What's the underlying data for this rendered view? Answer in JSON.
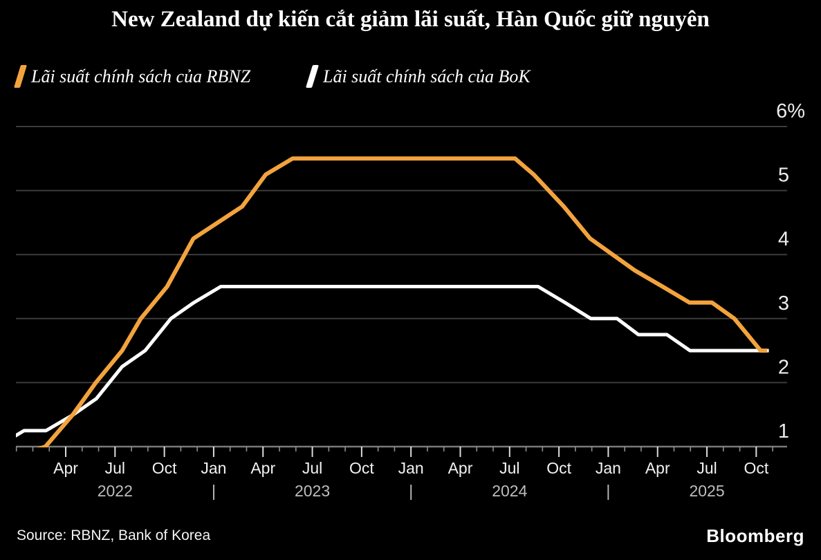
{
  "title": "New Zealand dự kiến cắt giảm lãi suất, Hàn Quốc giữ nguyên",
  "legend": [
    {
      "label": "Lãi suất chính sách của RBNZ",
      "color": "#F3A33D"
    },
    {
      "label": "Lãi suất chính sách của BoK",
      "color": "#FFFFFF"
    }
  ],
  "footer": {
    "source": "Source: RBNZ, Bank of Korea",
    "brand": "Bloomberg"
  },
  "colors": {
    "background": "#000000",
    "gridline": "#3C3C3C",
    "axis_line": "#7A7A7A",
    "major_tick": "#DCDCDC",
    "minor_tick": "#8F8F8F",
    "y_label": "#ECECEC",
    "month_label": "#F2F2F2",
    "year_label": "#BDBDBD",
    "rbnz_orange": "#F3A33D",
    "bok_white": "#FFFFFF"
  },
  "chart_data": {
    "type": "line",
    "title": "New Zealand dự kiến cắt giảm lãi suất, Hàn Quốc giữ nguyên",
    "xlabel": "",
    "ylabel": "%",
    "ylim": [
      1,
      6
    ],
    "x_domain": [
      "2022-01",
      "2025-11"
    ],
    "grid": "horizontal",
    "legend_position": "top-left",
    "yticks": [
      {
        "v": 6,
        "label": "6%"
      },
      {
        "v": 5,
        "label": "5"
      },
      {
        "v": 4,
        "label": "4"
      },
      {
        "v": 3,
        "label": "3"
      },
      {
        "v": 2,
        "label": "2"
      },
      {
        "v": 1,
        "label": "1"
      }
    ],
    "xticks": [
      {
        "m": 3,
        "label": "Apr"
      },
      {
        "m": 6,
        "label": "Jul"
      },
      {
        "m": 9,
        "label": "Oct"
      },
      {
        "m": 12,
        "label": "Jan"
      },
      {
        "m": 15,
        "label": "Apr"
      },
      {
        "m": 18,
        "label": "Jul"
      },
      {
        "m": 21,
        "label": "Oct"
      },
      {
        "m": 24,
        "label": "Jan"
      },
      {
        "m": 27,
        "label": "Apr"
      },
      {
        "m": 30,
        "label": "Jul"
      },
      {
        "m": 33,
        "label": "Oct"
      },
      {
        "m": 36,
        "label": "Jan"
      },
      {
        "m": 39,
        "label": "Apr"
      },
      {
        "m": 42,
        "label": "Jul"
      },
      {
        "m": 45,
        "label": "Oct"
      }
    ],
    "year_labels": [
      {
        "m": 6,
        "label": "2022"
      },
      {
        "m": 12,
        "label": "|"
      },
      {
        "m": 18,
        "label": "2023"
      },
      {
        "m": 24,
        "label": "|"
      },
      {
        "m": 30,
        "label": "2024"
      },
      {
        "m": 36,
        "label": "|"
      },
      {
        "m": 42,
        "label": "2025"
      }
    ],
    "series": [
      {
        "name": "Lãi suất chính sách của RBNZ",
        "unit": "%",
        "color": "#F3A33D",
        "points": [
          {
            "d": "2021-11-24",
            "v": 0.75
          },
          {
            "d": "2022-02-23",
            "v": 1.0
          },
          {
            "d": "2022-04-13",
            "v": 1.5
          },
          {
            "d": "2022-05-25",
            "v": 2.0
          },
          {
            "d": "2022-07-13",
            "v": 2.5
          },
          {
            "d": "2022-08-17",
            "v": 3.0
          },
          {
            "d": "2022-10-05",
            "v": 3.5
          },
          {
            "d": "2022-11-23",
            "v": 4.25
          },
          {
            "d": "2023-02-22",
            "v": 4.75
          },
          {
            "d": "2023-04-05",
            "v": 5.25
          },
          {
            "d": "2023-05-24",
            "v": 5.5
          },
          {
            "d": "2024-07-10",
            "v": 5.5
          },
          {
            "d": "2024-08-14",
            "v": 5.25
          },
          {
            "d": "2024-10-09",
            "v": 4.75
          },
          {
            "d": "2024-11-27",
            "v": 4.25
          },
          {
            "d": "2025-02-19",
            "v": 3.75
          },
          {
            "d": "2025-04-09",
            "v": 3.5
          },
          {
            "d": "2025-05-28",
            "v": 3.25
          },
          {
            "d": "2025-07-09",
            "v": 3.25
          },
          {
            "d": "2025-08-20",
            "v": 3.0
          },
          {
            "d": "2025-10-08",
            "v": 2.5
          },
          {
            "d": "2025-10-20",
            "v": 2.5
          }
        ]
      },
      {
        "name": "Lãi suất chính sách của BoK",
        "unit": "%",
        "color": "#FFFFFF",
        "points": [
          {
            "d": "2021-11-25",
            "v": 1.0
          },
          {
            "d": "2022-01-14",
            "v": 1.25
          },
          {
            "d": "2022-02-24",
            "v": 1.25
          },
          {
            "d": "2022-04-14",
            "v": 1.5
          },
          {
            "d": "2022-05-26",
            "v": 1.75
          },
          {
            "d": "2022-07-13",
            "v": 2.25
          },
          {
            "d": "2022-08-25",
            "v": 2.5
          },
          {
            "d": "2022-10-12",
            "v": 3.0
          },
          {
            "d": "2022-11-24",
            "v": 3.25
          },
          {
            "d": "2023-01-13",
            "v": 3.5
          },
          {
            "d": "2024-08-22",
            "v": 3.5
          },
          {
            "d": "2024-10-11",
            "v": 3.25
          },
          {
            "d": "2024-11-28",
            "v": 3.0
          },
          {
            "d": "2025-01-16",
            "v": 3.0
          },
          {
            "d": "2025-02-25",
            "v": 2.75
          },
          {
            "d": "2025-04-17",
            "v": 2.75
          },
          {
            "d": "2025-05-29",
            "v": 2.5
          },
          {
            "d": "2025-10-23",
            "v": 2.5
          }
        ]
      }
    ]
  }
}
